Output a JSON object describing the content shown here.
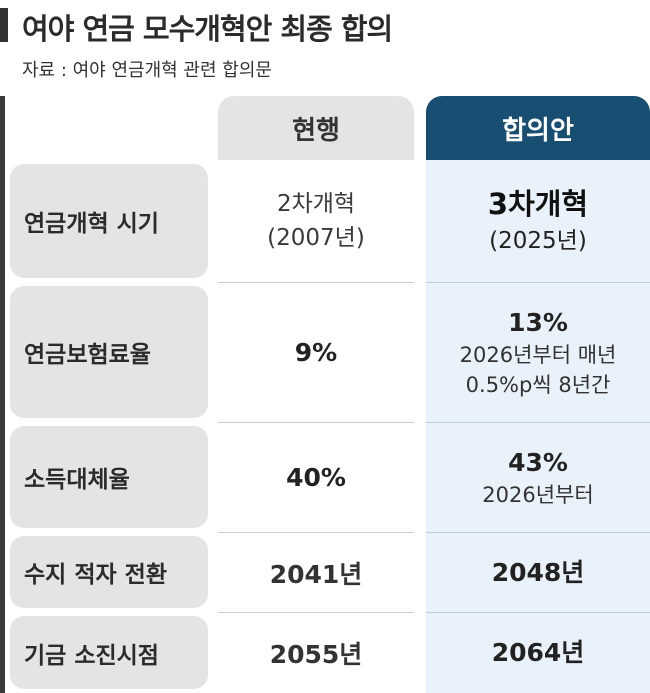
{
  "title": "여야 연금 모수개혁안 최종 합의",
  "source": "자료 : 여야 연금개혁 관련 합의문",
  "columns": {
    "current": "현행",
    "agreement": "합의안"
  },
  "rows": [
    {
      "label": "연금개혁 시기",
      "current": [
        "2차개혁",
        "(2007년)"
      ],
      "agreement": [
        "3차개혁",
        "(2025년)"
      ]
    },
    {
      "label": "연금보험료율",
      "current": [
        "9%"
      ],
      "agreement": [
        "13%",
        "2026년부터 매년",
        "0.5%p씩 8년간"
      ]
    },
    {
      "label": "소득대체율",
      "current": [
        "40%"
      ],
      "agreement": [
        "43%",
        "2026년부터"
      ]
    },
    {
      "label": "수지 적자 전환",
      "current": [
        "2041년"
      ],
      "agreement": [
        "2048년"
      ]
    },
    {
      "label": "기금 소진시점",
      "current": [
        "2055년"
      ],
      "agreement": [
        "2064년"
      ]
    }
  ],
  "colors": {
    "header_current_bg": "#e4e4e4",
    "header_agreement_bg": "#184e72",
    "agreement_cell_bg": "#e9f2fa",
    "label_bg": "#e4e4e4"
  }
}
